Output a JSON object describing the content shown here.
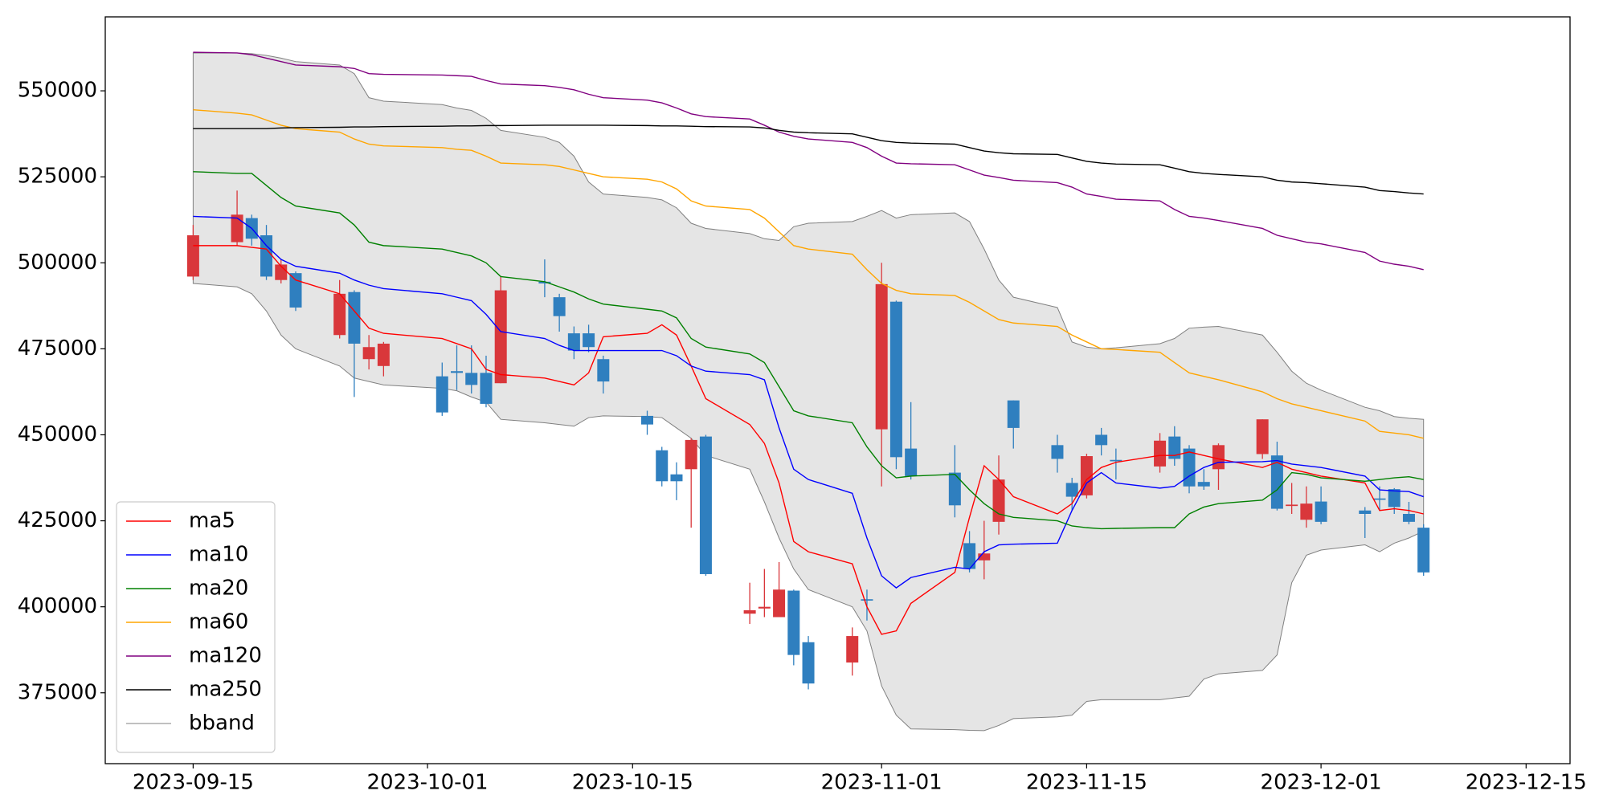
{
  "chart_data": {
    "type": "candlestick",
    "x": [
      "2023-09-15",
      "2023-09-18",
      "2023-09-19",
      "2023-09-20",
      "2023-09-21",
      "2023-09-22",
      "2023-09-25",
      "2023-09-26",
      "2023-09-27",
      "2023-09-28",
      "2023-10-02",
      "2023-10-03",
      "2023-10-04",
      "2023-10-05",
      "2023-10-06",
      "2023-10-09",
      "2023-10-10",
      "2023-10-11",
      "2023-10-12",
      "2023-10-13",
      "2023-10-16",
      "2023-10-17",
      "2023-10-18",
      "2023-10-19",
      "2023-10-20",
      "2023-10-23",
      "2023-10-24",
      "2023-10-25",
      "2023-10-26",
      "2023-10-27",
      "2023-10-30",
      "2023-10-31",
      "2023-11-01",
      "2023-11-02",
      "2023-11-03",
      "2023-11-06",
      "2023-11-07",
      "2023-11-08",
      "2023-11-09",
      "2023-11-10",
      "2023-11-13",
      "2023-11-14",
      "2023-11-15",
      "2023-11-16",
      "2023-11-17",
      "2023-11-20",
      "2023-11-21",
      "2023-11-22",
      "2023-11-23",
      "2023-11-24",
      "2023-11-27",
      "2023-11-28",
      "2023-11-29",
      "2023-11-30",
      "2023-12-01",
      "2023-12-04",
      "2023-12-05",
      "2023-12-06",
      "2023-12-07",
      "2023-12-08"
    ],
    "open": [
      496000,
      506000,
      513000,
      508000,
      495000,
      497000,
      479000,
      491500,
      472000,
      470000,
      467000,
      468500,
      468000,
      468000,
      465000,
      494500,
      490000,
      479500,
      479500,
      472000,
      455500,
      445500,
      438500,
      440000,
      449500,
      398000,
      399500,
      397000,
      404700,
      389700,
      383800,
      402200,
      451600,
      488700,
      446000,
      439000,
      418500,
      413500,
      424700,
      460000,
      447000,
      436000,
      432400,
      450000,
      442700,
      440800,
      449500,
      446000,
      436300,
      440000,
      444400,
      444000,
      429300,
      425300,
      430600,
      428000,
      431500,
      434200,
      427000,
      423000
    ],
    "high": [
      511000,
      521000,
      514000,
      511000,
      501000,
      497500,
      495000,
      492000,
      479000,
      477000,
      471000,
      476000,
      476000,
      473000,
      496000,
      501000,
      491000,
      481500,
      482000,
      473000,
      457000,
      446500,
      442000,
      449000,
      450000,
      407000,
      411000,
      413000,
      405000,
      391500,
      394000,
      405000,
      500000,
      489000,
      459500,
      447000,
      422000,
      425000,
      444000,
      460000,
      450000,
      437500,
      444500,
      452000,
      446000,
      450500,
      452500,
      447000,
      440000,
      447500,
      454500,
      448000,
      436000,
      435000,
      435000,
      429000,
      435000,
      434500,
      430500,
      424000
    ],
    "low": [
      495000,
      505000,
      505000,
      495000,
      494000,
      486000,
      478000,
      461000,
      469000,
      467000,
      455500,
      463000,
      462000,
      458000,
      465000,
      490000,
      480000,
      472000,
      474000,
      462000,
      450000,
      435000,
      431000,
      423000,
      409000,
      395000,
      397000,
      397000,
      383000,
      376000,
      380000,
      396000,
      435000,
      440000,
      437000,
      426000,
      410000,
      408000,
      421000,
      446000,
      439000,
      428000,
      431500,
      444000,
      437000,
      439000,
      441000,
      433000,
      434000,
      434000,
      443000,
      428000,
      427000,
      423000,
      424000,
      420000,
      428000,
      427000,
      424000,
      409000
    ],
    "close": [
      508000,
      514000,
      507000,
      496000,
      499500,
      487000,
      491000,
      476500,
      475500,
      476500,
      456500,
      468000,
      464500,
      459000,
      492000,
      494000,
      484500,
      474500,
      475500,
      465500,
      453000,
      436500,
      436500,
      448500,
      409500,
      399000,
      400000,
      405000,
      386000,
      377700,
      391500,
      401800,
      493800,
      443500,
      438000,
      429500,
      411000,
      415500,
      437000,
      452000,
      443000,
      432000,
      443800,
      447000,
      442300,
      448300,
      443000,
      435000,
      435000,
      447000,
      454500,
      428500,
      429700,
      430000,
      424700,
      427000,
      431100,
      429000,
      424700,
      410000
    ],
    "up_color": "#d9373b",
    "down_color": "#2f7fbf",
    "series": [
      {
        "name": "ma5",
        "color": "#ff0000",
        "values": [
          505000,
          505000,
          504500,
          504000,
          499000,
          495000,
          491000,
          486000,
          481000,
          479500,
          478000,
          476500,
          475000,
          469000,
          467500,
          466500,
          465500,
          464500,
          468000,
          478500,
          479500,
          482000,
          479000,
          470000,
          460500,
          453000,
          447500,
          436000,
          419000,
          416000,
          412500,
          400000,
          392000,
          393000,
          401000,
          410000,
          426000,
          441000,
          437000,
          432000,
          427000,
          430000,
          437000,
          440500,
          442000,
          444000,
          444000,
          445000,
          444000,
          443000,
          440500,
          442000,
          440000,
          439000,
          438000,
          436000,
          428000,
          428500,
          428000,
          427000
        ]
      },
      {
        "name": "ma10",
        "color": "#0000ff",
        "values": [
          513500,
          513000,
          510000,
          505000,
          501000,
          499000,
          497000,
          495000,
          493500,
          492500,
          491000,
          490000,
          489000,
          485000,
          480000,
          478000,
          476000,
          474500,
          474500,
          474500,
          474500,
          474500,
          473000,
          470000,
          468500,
          467500,
          466000,
          452000,
          440000,
          437000,
          433000,
          420000,
          409000,
          405500,
          408500,
          411500,
          411000,
          416000,
          418000,
          418200,
          418500,
          428000,
          436000,
          439000,
          436000,
          434500,
          435000,
          438000,
          440500,
          442000,
          442200,
          442500,
          441500,
          441000,
          440500,
          438000,
          434000,
          433700,
          433500,
          432000
        ]
      },
      {
        "name": "ma20",
        "color": "#008000",
        "values": [
          526500,
          526000,
          526000,
          522500,
          519000,
          516500,
          514500,
          511000,
          506000,
          505000,
          504000,
          503000,
          502000,
          500000,
          496000,
          494500,
          493000,
          491500,
          489500,
          488000,
          486500,
          486000,
          484000,
          478000,
          475500,
          473500,
          471000,
          464000,
          457000,
          455500,
          453500,
          446500,
          441000,
          437500,
          438000,
          438500,
          434000,
          430000,
          427000,
          426000,
          425000,
          423500,
          423000,
          422700,
          422800,
          423000,
          423000,
          427000,
          429000,
          430000,
          431000,
          434000,
          439000,
          438500,
          437500,
          436500,
          437000,
          437500,
          437800,
          437000
        ]
      },
      {
        "name": "ma60",
        "color": "#ffa500",
        "values": [
          544500,
          543500,
          543000,
          541500,
          540000,
          539000,
          538000,
          536000,
          534500,
          534000,
          533500,
          533000,
          532700,
          531000,
          529000,
          528500,
          528000,
          527000,
          526000,
          525000,
          524300,
          523500,
          521500,
          518000,
          516500,
          515500,
          513000,
          509000,
          505000,
          504000,
          502500,
          498000,
          494000,
          492000,
          491000,
          490500,
          488500,
          486000,
          483500,
          482500,
          481500,
          479000,
          477000,
          475000,
          474800,
          474000,
          471000,
          468000,
          467000,
          466000,
          462500,
          460500,
          459000,
          458000,
          457000,
          454000,
          451000,
          450500,
          450000,
          449000
        ]
      },
      {
        "name": "ma120",
        "color": "#800080",
        "values": [
          561200,
          561000,
          560500,
          559500,
          558500,
          557500,
          557000,
          556500,
          555000,
          554800,
          554600,
          554400,
          554200,
          553000,
          552000,
          551500,
          551000,
          550300,
          549000,
          548000,
          547300,
          546500,
          545000,
          543300,
          542500,
          541800,
          540000,
          538000,
          536800,
          536000,
          535000,
          533500,
          531000,
          529000,
          528800,
          528500,
          527000,
          525500,
          524800,
          524000,
          523300,
          522000,
          520000,
          519300,
          518500,
          518000,
          515500,
          513500,
          513000,
          512300,
          510000,
          508000,
          507000,
          506000,
          505500,
          503000,
          500500,
          499600,
          499000,
          498000
        ]
      },
      {
        "name": "ma250",
        "color": "#000000",
        "values": [
          539000,
          539000,
          539000,
          539000,
          539200,
          539300,
          539400,
          539500,
          539500,
          539600,
          539700,
          539800,
          539800,
          539900,
          539900,
          540000,
          540000,
          540000,
          540000,
          540000,
          539900,
          539800,
          539800,
          539700,
          539600,
          539500,
          539200,
          538500,
          538000,
          537800,
          537500,
          536500,
          535500,
          535000,
          534800,
          534500,
          533500,
          532500,
          532000,
          531700,
          531500,
          530500,
          529500,
          529000,
          528700,
          528500,
          527500,
          526500,
          526000,
          525700,
          525000,
          524000,
          523500,
          523300,
          523000,
          522000,
          521000,
          520700,
          520300,
          520000
        ]
      }
    ],
    "bband": {
      "name": "bband",
      "color": "#808080",
      "fill": "#e5e5e5",
      "upper": [
        561000,
        561000,
        560800,
        560300,
        559500,
        558500,
        557500,
        555000,
        548000,
        547000,
        546000,
        545000,
        544300,
        542000,
        538500,
        536500,
        535000,
        531000,
        523500,
        520000,
        519000,
        518300,
        516000,
        511500,
        510000,
        508500,
        507000,
        506500,
        510500,
        511500,
        512000,
        513500,
        515200,
        513000,
        514000,
        514500,
        512000,
        504000,
        495000,
        490000,
        487000,
        477000,
        475500,
        475000,
        475300,
        476500,
        478000,
        481000,
        481300,
        481500,
        479000,
        474000,
        468500,
        465000,
        463000,
        458000,
        457000,
        455300,
        454800,
        454500
      ],
      "lower": [
        494000,
        493000,
        491000,
        486000,
        479000,
        475000,
        470000,
        466500,
        465500,
        464500,
        463500,
        462800,
        461000,
        459500,
        454500,
        453500,
        453000,
        452500,
        455000,
        455500,
        455300,
        455000,
        452000,
        449000,
        444000,
        440000,
        430500,
        420000,
        411000,
        405000,
        400000,
        393000,
        377000,
        368500,
        364500,
        364300,
        364100,
        364000,
        365500,
        367500,
        368000,
        368500,
        372500,
        373000,
        373000,
        373000,
        373500,
        374000,
        379000,
        380500,
        381500,
        386000,
        407000,
        415000,
        416500,
        418000,
        416000,
        418500,
        420000,
        422000
      ]
    },
    "xlim": [
      "2023-09-09",
      "2023-12-18"
    ],
    "xticks": [
      "2023-09-15",
      "2023-10-01",
      "2023-10-15",
      "2023-11-01",
      "2023-11-15",
      "2023-12-01",
      "2023-12-15"
    ],
    "ylim": [
      354400,
      571500
    ],
    "yticks": [
      375000,
      400000,
      425000,
      450000,
      475000,
      500000,
      525000,
      550000
    ],
    "legend": "lower left"
  }
}
